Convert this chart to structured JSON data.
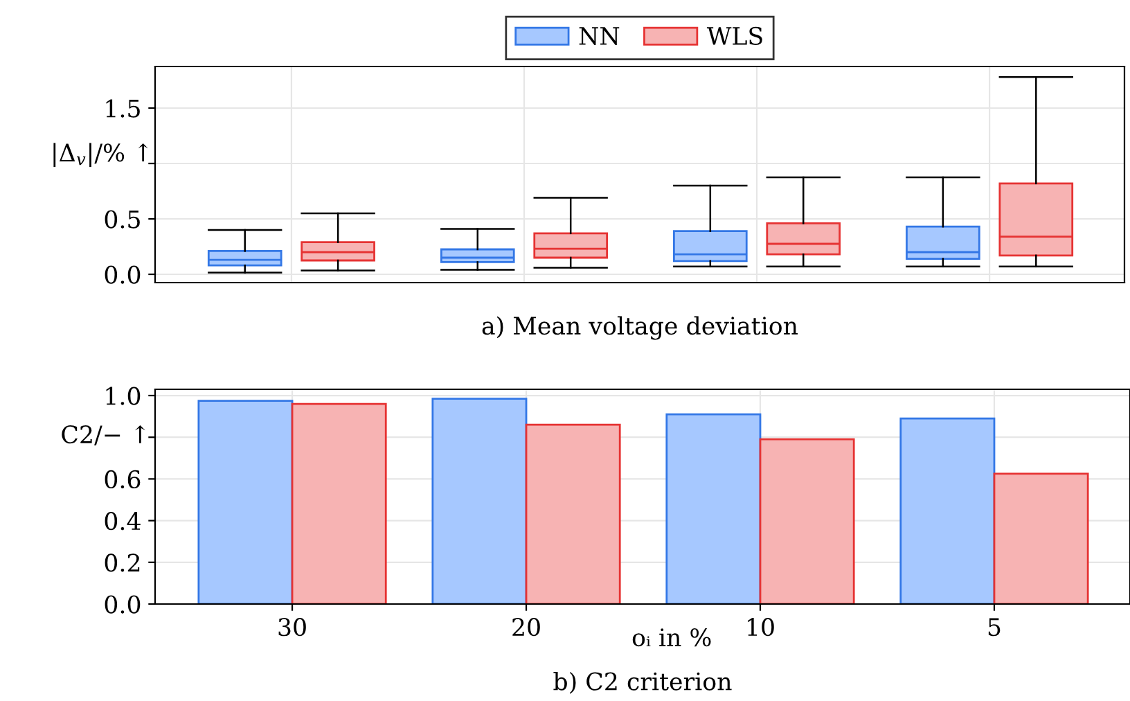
{
  "chart_data": [
    {
      "type": "box",
      "title": "a) Mean voltage deviation",
      "ylabel": "|Δ$_{v}$|/% ↑",
      "categories": [
        "30",
        "20",
        "10",
        "5"
      ],
      "tick_labels": "y",
      "ylim": [
        -0.075,
        1.875
      ],
      "yticks": [
        {
          "value": 0,
          "label": "0.0"
        },
        0.5,
        {
          "value": 1.0,
          "label": null
        },
        1.5
      ],
      "grid": true,
      "legend": "top",
      "series": [
        {
          "name": "NN",
          "color": "#a6c8ff",
          "boxes": [
            {
              "low": 0.015,
              "q1": 0.08,
              "median": 0.13,
              "q3": 0.21,
              "high": 0.4
            },
            {
              "low": 0.04,
              "q1": 0.11,
              "median": 0.15,
              "q3": 0.225,
              "high": 0.41
            },
            {
              "low": 0.07,
              "q1": 0.12,
              "median": 0.18,
              "q3": 0.39,
              "high": 0.8
            },
            {
              "low": 0.07,
              "q1": 0.14,
              "median": 0.2,
              "q3": 0.43,
              "high": 0.875
            }
          ]
        },
        {
          "name": "WLS",
          "color": "#f7b3b3",
          "boxes": [
            {
              "low": 0.035,
              "q1": 0.125,
              "median": 0.2,
              "q3": 0.29,
              "high": 0.55
            },
            {
              "low": 0.06,
              "q1": 0.15,
              "median": 0.23,
              "q3": 0.37,
              "high": 0.69
            },
            {
              "low": 0.07,
              "q1": 0.18,
              "median": 0.275,
              "q3": 0.46,
              "high": 0.875
            },
            {
              "low": 0.07,
              "q1": 0.17,
              "median": 0.34,
              "q3": 0.82,
              "high": 1.78
            }
          ]
        }
      ]
    },
    {
      "type": "bar",
      "title": "b) C2 criterion",
      "xlabel": "oᵢ in %",
      "ylabel": "C2/− ↑",
      "categories": [
        "30",
        "20",
        "10",
        "5"
      ],
      "ylim": [
        0,
        1.03
      ],
      "yticks": [
        {
          "value": 0,
          "label": "0.0"
        },
        0.2,
        0.4,
        0.6,
        {
          "value": 0.8,
          "label": null
        },
        {
          "value": 1,
          "label": "1.0"
        }
      ],
      "grid": true,
      "series": [
        {
          "color": "#a6c8ff",
          "values": [
            0.975,
            0.985,
            0.91,
            0.89
          ]
        },
        {
          "color": "#f7b3b3",
          "values": [
            0.96,
            0.86,
            0.79,
            0.625
          ]
        }
      ]
    }
  ]
}
